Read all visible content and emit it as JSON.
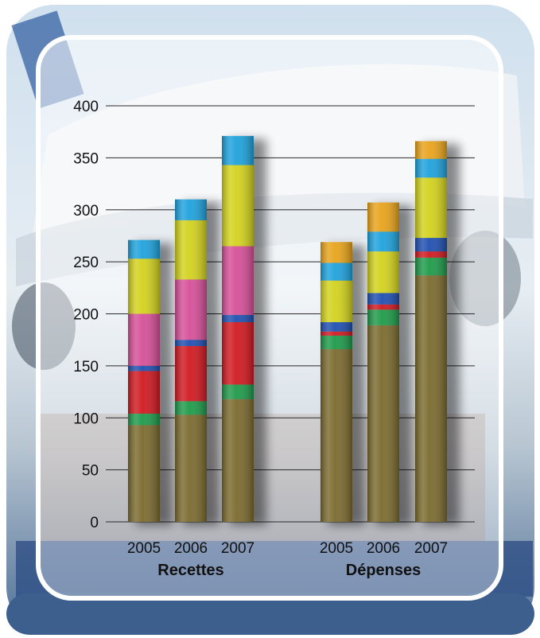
{
  "chart_data": {
    "type": "bar",
    "stacked": true,
    "title": "",
    "xlabel": "",
    "ylabel": "",
    "ylim": [
      0,
      400
    ],
    "yticks": [
      0,
      50,
      100,
      150,
      200,
      250,
      300,
      350,
      400
    ],
    "grid": true,
    "legend": "none",
    "groups": [
      {
        "label": "Recettes",
        "categories": [
          "2005",
          "2006",
          "2007"
        ]
      },
      {
        "label": "Dépenses",
        "categories": [
          "2005",
          "2006",
          "2007"
        ]
      }
    ],
    "categories": [
      "2005",
      "2006",
      "2007",
      "2005",
      "2006",
      "2007"
    ],
    "series": [
      {
        "color": "#7b6a2e",
        "values": [
          93,
          103,
          118,
          166,
          189,
          237
        ]
      },
      {
        "color": "#1e9a4a",
        "values": [
          11,
          13,
          14,
          13,
          15,
          17
        ]
      },
      {
        "color": "#d01920",
        "values": [
          41,
          53,
          60,
          4,
          5,
          6
        ]
      },
      {
        "color": "#1f4fb0",
        "values": [
          5,
          6,
          7,
          9,
          11,
          13
        ]
      },
      {
        "color": "#d64f98",
        "values": [
          50,
          58,
          66,
          0,
          0,
          0
        ]
      },
      {
        "color": "#d3d21d",
        "values": [
          53,
          57,
          78,
          40,
          40,
          58
        ]
      },
      {
        "color": "#1ea2dc",
        "values": [
          18,
          20,
          28,
          17,
          19,
          18
        ]
      },
      {
        "color": "#e8a31a",
        "values": [
          0,
          0,
          0,
          20,
          28,
          17
        ]
      }
    ]
  }
}
